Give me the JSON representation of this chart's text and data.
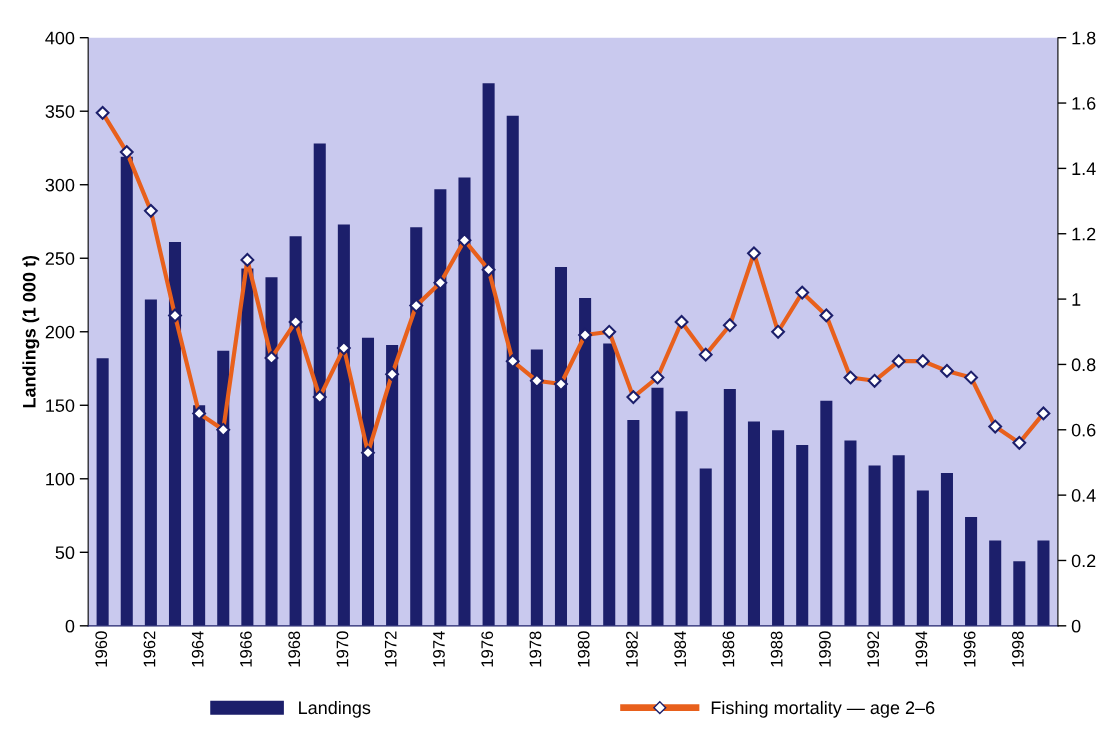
{
  "chart_data": {
    "type": "bar",
    "ylabel": "Landings (1 000 t)",
    "categories": [
      "1960",
      null,
      "1962",
      null,
      "1964",
      null,
      "1966",
      null,
      "1968",
      null,
      "1970",
      null,
      "1972",
      null,
      "1974",
      null,
      "1976",
      null,
      "1978",
      null,
      "1980",
      null,
      "1982",
      null,
      "1984",
      null,
      "1986",
      null,
      "1988",
      null,
      "1990",
      null,
      "1992",
      null,
      "1994",
      null,
      "1996",
      null,
      "1998",
      null
    ],
    "series": [
      {
        "name": "Landings",
        "color": "#1c1f6b",
        "values": [
          182,
          319,
          222,
          261,
          150,
          187,
          243,
          237,
          265,
          328,
          273,
          196,
          191,
          271,
          297,
          305,
          369,
          347,
          188,
          244,
          223,
          192,
          140,
          162,
          146,
          107,
          161,
          139,
          133,
          123,
          153,
          126,
          109,
          116,
          92,
          104,
          74,
          58,
          44,
          58
        ]
      },
      {
        "name": "Fishing mortality — age 2–6",
        "type": "line",
        "axis": "y2",
        "color": "#e8601c",
        "marker": "diamond",
        "values": [
          1.57,
          1.45,
          1.27,
          0.95,
          0.65,
          0.6,
          1.12,
          0.82,
          0.93,
          0.7,
          0.85,
          0.53,
          0.77,
          0.98,
          1.05,
          1.18,
          1.09,
          0.81,
          0.75,
          0.74,
          0.89,
          0.9,
          0.7,
          0.76,
          0.93,
          0.83,
          0.92,
          1.14,
          0.9,
          1.02,
          0.95,
          0.76,
          0.75,
          0.81,
          0.81,
          0.78,
          0.76,
          0.61,
          0.56,
          0.65
        ]
      }
    ],
    "ylim": [
      0,
      400
    ],
    "yticks": [
      0,
      50,
      100,
      150,
      200,
      250,
      300,
      350,
      400
    ],
    "y2lim": [
      0,
      1.8
    ],
    "y2ticks": [
      0,
      0.2,
      0.4,
      0.6,
      0.8,
      1,
      1.2,
      1.4,
      1.6,
      1.8
    ],
    "grid": false,
    "legend": "bottom"
  }
}
